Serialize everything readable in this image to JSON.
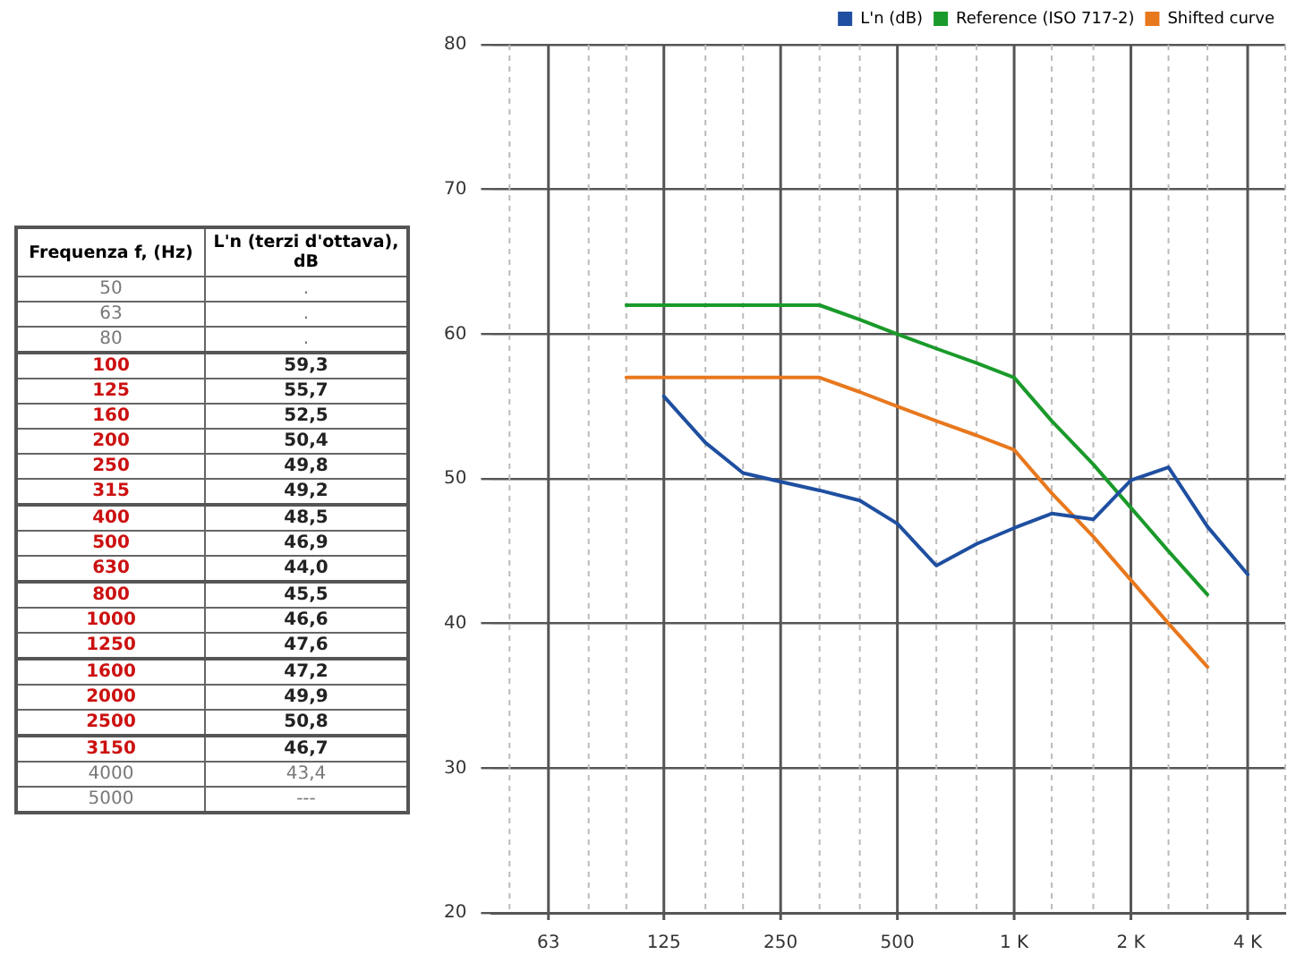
{
  "chart_data": [
    {
      "type": "other",
      "annotations": [
        "Frequenza f, (Hz)",
        "L'n (terzi d'ottava), dB",
        "50",
        ".",
        "63",
        ".",
        "80",
        ".",
        "100",
        "59,3",
        "125",
        "55,7",
        "160",
        "52,5",
        "200",
        "50,4",
        "250",
        "49,8",
        "315",
        "49,2",
        "400",
        "48,5",
        "500",
        "46,9",
        "630",
        "44,0",
        "800",
        "45,5",
        "1000",
        "46,6",
        "1250",
        "47,6",
        "1600",
        "47,2",
        "2000",
        "49,9",
        "2500",
        "50,8",
        "3150",
        "46,7",
        "4000",
        "43,4",
        "5000",
        "---"
      ]
    },
    {
      "type": "line",
      "x": [
        100,
        125,
        160,
        200,
        250,
        315,
        400,
        500,
        630,
        800,
        1000,
        1250,
        1600,
        2000,
        2500,
        3150,
        4000
      ],
      "series": [
        {
          "name": "L'n (dB)",
          "color": "#1f4fa0",
          "values": [
            null,
            55.7,
            52.5,
            50.4,
            49.8,
            49.2,
            48.5,
            46.9,
            44.0,
            45.5,
            46.6,
            47.6,
            47.2,
            49.9,
            50.8,
            46.7,
            43.4
          ]
        },
        {
          "name": "Reference (ISO 717-2)",
          "color": "#1a9a2a",
          "values": [
            62,
            62,
            62,
            62,
            62,
            62,
            61,
            60,
            59,
            58,
            57,
            54,
            51,
            48,
            45,
            42,
            null
          ]
        },
        {
          "name": "Shifted curve",
          "color": "#e8781e",
          "values": [
            57,
            57,
            57,
            57,
            57,
            57,
            56,
            55,
            54,
            53,
            52,
            49,
            46,
            43,
            40,
            37,
            null
          ]
        }
      ],
      "log": "x",
      "xlim": [
        45,
        5000
      ],
      "xticks": [
        {
          "value": 50,
          "label": null
        },
        63,
        {
          "value": 80,
          "label": null
        },
        {
          "value": 100,
          "label": null
        },
        125,
        {
          "value": 160,
          "label": null
        },
        {
          "value": 200,
          "label": null
        },
        250,
        {
          "value": 315,
          "label": null
        },
        {
          "value": 400,
          "label": null
        },
        500,
        {
          "value": 630,
          "label": null
        },
        {
          "value": 800,
          "label": null
        },
        {
          "value": 1000,
          "label": "1 K"
        },
        {
          "value": 1250,
          "label": null
        },
        {
          "value": 1600,
          "label": null
        },
        {
          "value": 2000,
          "label": "2 K"
        },
        {
          "value": 2500,
          "label": null
        },
        {
          "value": 3150,
          "label": null
        },
        {
          "value": 4000,
          "label": "4 K"
        },
        {
          "value": 5000,
          "label": null
        }
      ],
      "ylim": [
        20,
        80
      ],
      "yticks": [
        20,
        30,
        40,
        50,
        60,
        70,
        80
      ],
      "grid": true,
      "legend": "top right",
      "marker": "none",
      "line_style": "solid"
    }
  ]
}
